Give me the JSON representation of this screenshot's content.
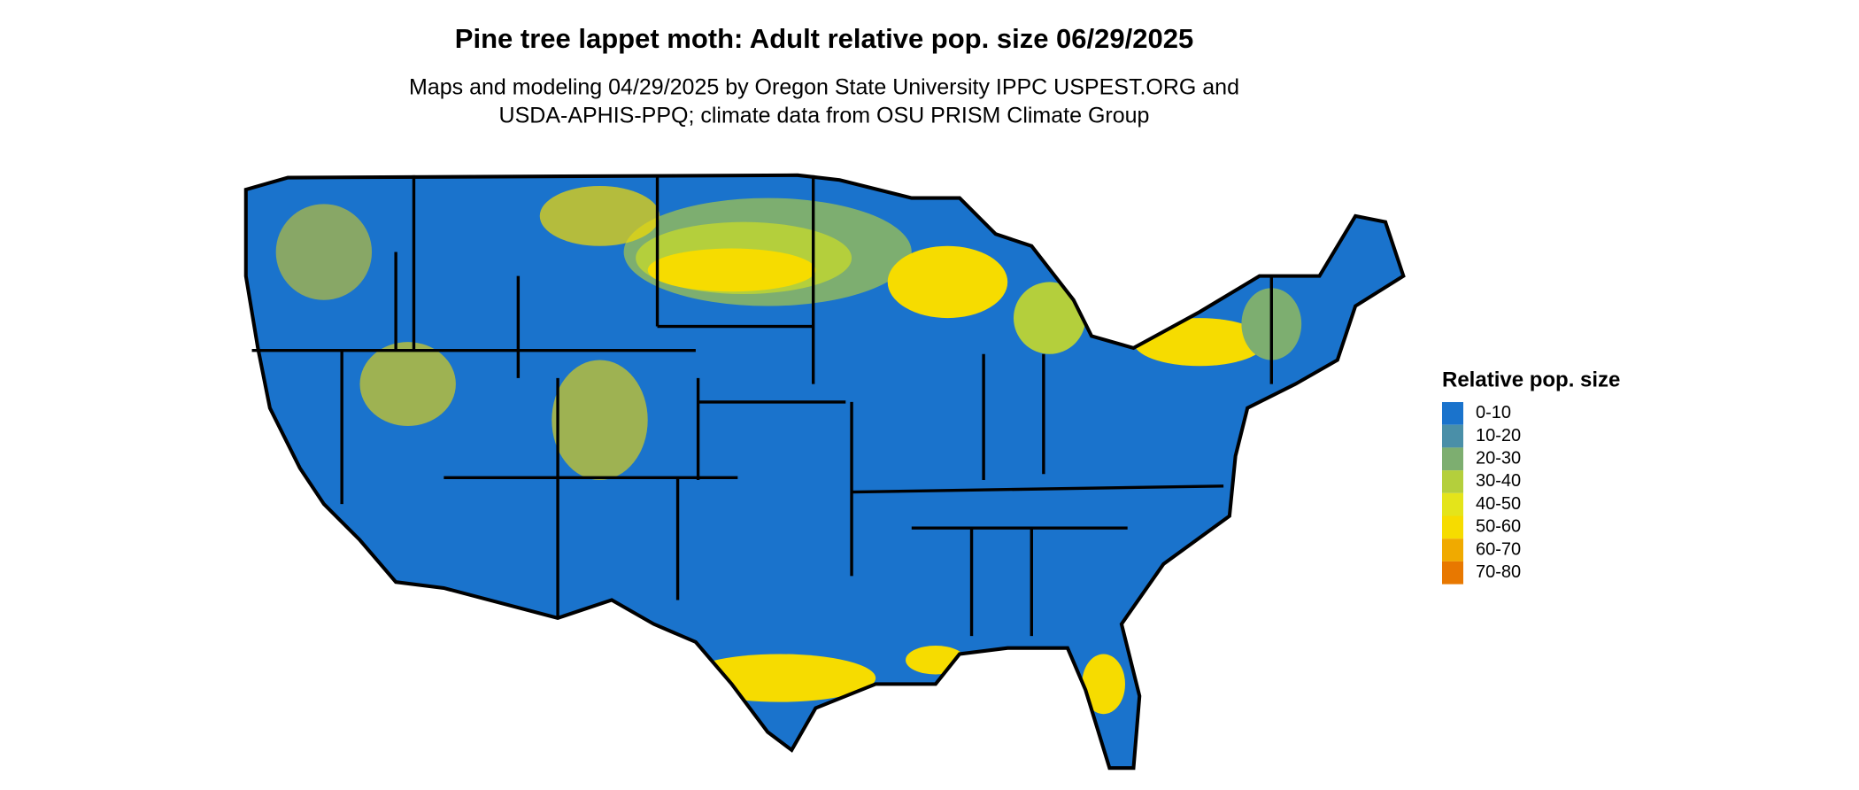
{
  "title": "Pine tree lappet moth: Adult relative pop. size 06/29/2025",
  "subtitle": [
    "Maps and modeling 04/29/2025 by Oregon State University IPPC USPEST.ORG and",
    "USDA-APHIS-PPQ; climate data from OSU PRISM Climate Group"
  ],
  "legend": {
    "title": "Relative pop. size",
    "items": [
      {
        "label": "0-10",
        "color": "#1a73cc"
      },
      {
        "label": "10-20",
        "color": "#4a8fa8"
      },
      {
        "label": "20-30",
        "color": "#7dae70"
      },
      {
        "label": "30-40",
        "color": "#b4cf3c"
      },
      {
        "label": "40-50",
        "color": "#e4e41a"
      },
      {
        "label": "50-60",
        "color": "#f6dc00"
      },
      {
        "label": "60-70",
        "color": "#f0aa00"
      },
      {
        "label": "70-80",
        "color": "#e87800"
      }
    ]
  }
}
